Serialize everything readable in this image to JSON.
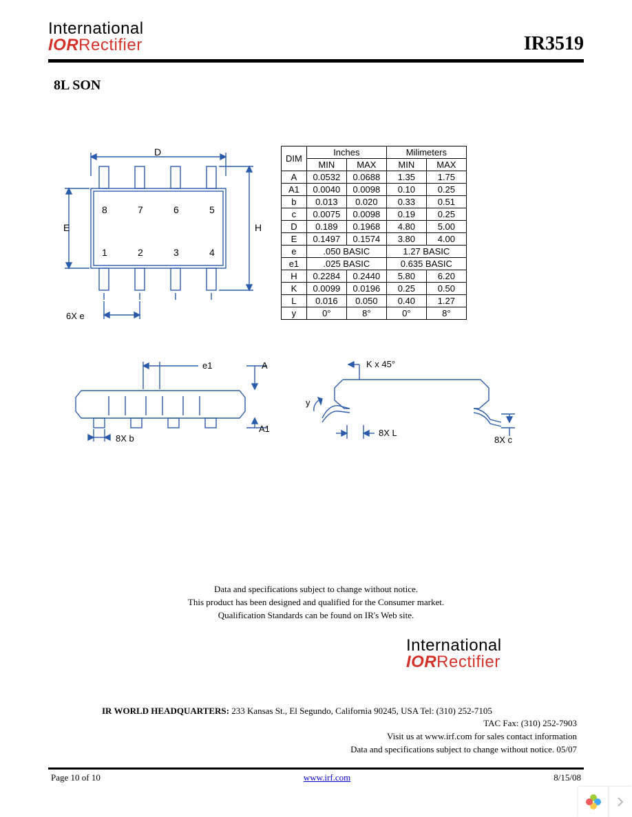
{
  "header": {
    "logo_line1": "International",
    "logo_ior": "IOR",
    "logo_line2": "Rectifier",
    "part_number": "IR3519"
  },
  "section_title": "8L SON",
  "diagram": {
    "dim_D": "D",
    "dim_E": "E",
    "dim_H": "H",
    "dim_A": "A",
    "dim_A1": "A1",
    "dim_e1": "e1",
    "pin_8": "8",
    "pin_7": "7",
    "pin_6": "6",
    "pin_5": "5",
    "pin_1": "1",
    "pin_2": "2",
    "pin_3": "3",
    "pin_4": "4",
    "lbl_6Xe": "6X e",
    "lbl_8Xb": "8X b",
    "lbl_Kx45": "K x 45°",
    "lbl_y": "y",
    "lbl_8XL": "8X L",
    "lbl_8Xc": "8X c"
  },
  "table": {
    "hdr_dim": "DIM",
    "hdr_inches": "Inches",
    "hdr_mm": "Milimeters",
    "hdr_min": "MIN",
    "hdr_max": "MAX",
    "rows": [
      {
        "d": "A",
        "imin": "0.0532",
        "imax": "0.0688",
        "mmin": "1.35",
        "mmax": "1.75"
      },
      {
        "d": "A1",
        "imin": "0.0040",
        "imax": "0.0098",
        "mmin": "0.10",
        "mmax": "0.25"
      },
      {
        "d": "b",
        "imin": "0.013",
        "imax": "0.020",
        "mmin": "0.33",
        "mmax": "0.51"
      },
      {
        "d": "c",
        "imin": "0.0075",
        "imax": "0.0098",
        "mmin": "0.19",
        "mmax": "0.25"
      },
      {
        "d": "D",
        "imin": "0.189",
        "imax": "0.1968",
        "mmin": "4.80",
        "mmax": "5.00"
      },
      {
        "d": "E",
        "imin": "0.1497",
        "imax": "0.1574",
        "mmin": "3.80",
        "mmax": "4.00"
      },
      {
        "d": "e",
        "ispan": ".050 BASIC",
        "mspan": "1.27 BASIC"
      },
      {
        "d": "e1",
        "ispan": ".025 BASIC",
        "mspan": "0.635 BASIC"
      },
      {
        "d": "H",
        "imin": "0.2284",
        "imax": "0.2440",
        "mmin": "5.80",
        "mmax": "6.20"
      },
      {
        "d": "K",
        "imin": "0.0099",
        "imax": "0.0196",
        "mmin": "0.25",
        "mmax": "0.50"
      },
      {
        "d": "L",
        "imin": "0.016",
        "imax": "0.050",
        "mmin": "0.40",
        "mmax": "1.27"
      },
      {
        "d": "y",
        "imin": "0°",
        "imax": "8°",
        "mmin": "0°",
        "mmax": "8°"
      }
    ]
  },
  "disclaimer": {
    "line1": "Data and specifications subject to change without notice.",
    "line2": "This product has been designed and qualified for the Consumer market.",
    "line3": "Qualification Standards can be found on IR's Web site."
  },
  "hq": {
    "label": "IR WORLD HEADQUARTERS:",
    "addr": " 233 Kansas St., El Segundo, California 90245, USA Tel: (310) 252-7105",
    "fax": "TAC Fax: (310) 252-7903",
    "visit": "Visit us at www.irf.com for sales contact information",
    "change": "Data and specifications subject to change without notice. 05/07"
  },
  "footer": {
    "page": "Page 10 of 10",
    "url": "www.irf.com",
    "date": "8/15/08"
  },
  "colors": {
    "brand_red": "#d4312a",
    "link_blue": "#0000cc",
    "petal_green": "#9fcc3b",
    "petal_blue": "#3fa9f5",
    "petal_yellow": "#f7c948",
    "petal_red": "#ef5a5a"
  }
}
